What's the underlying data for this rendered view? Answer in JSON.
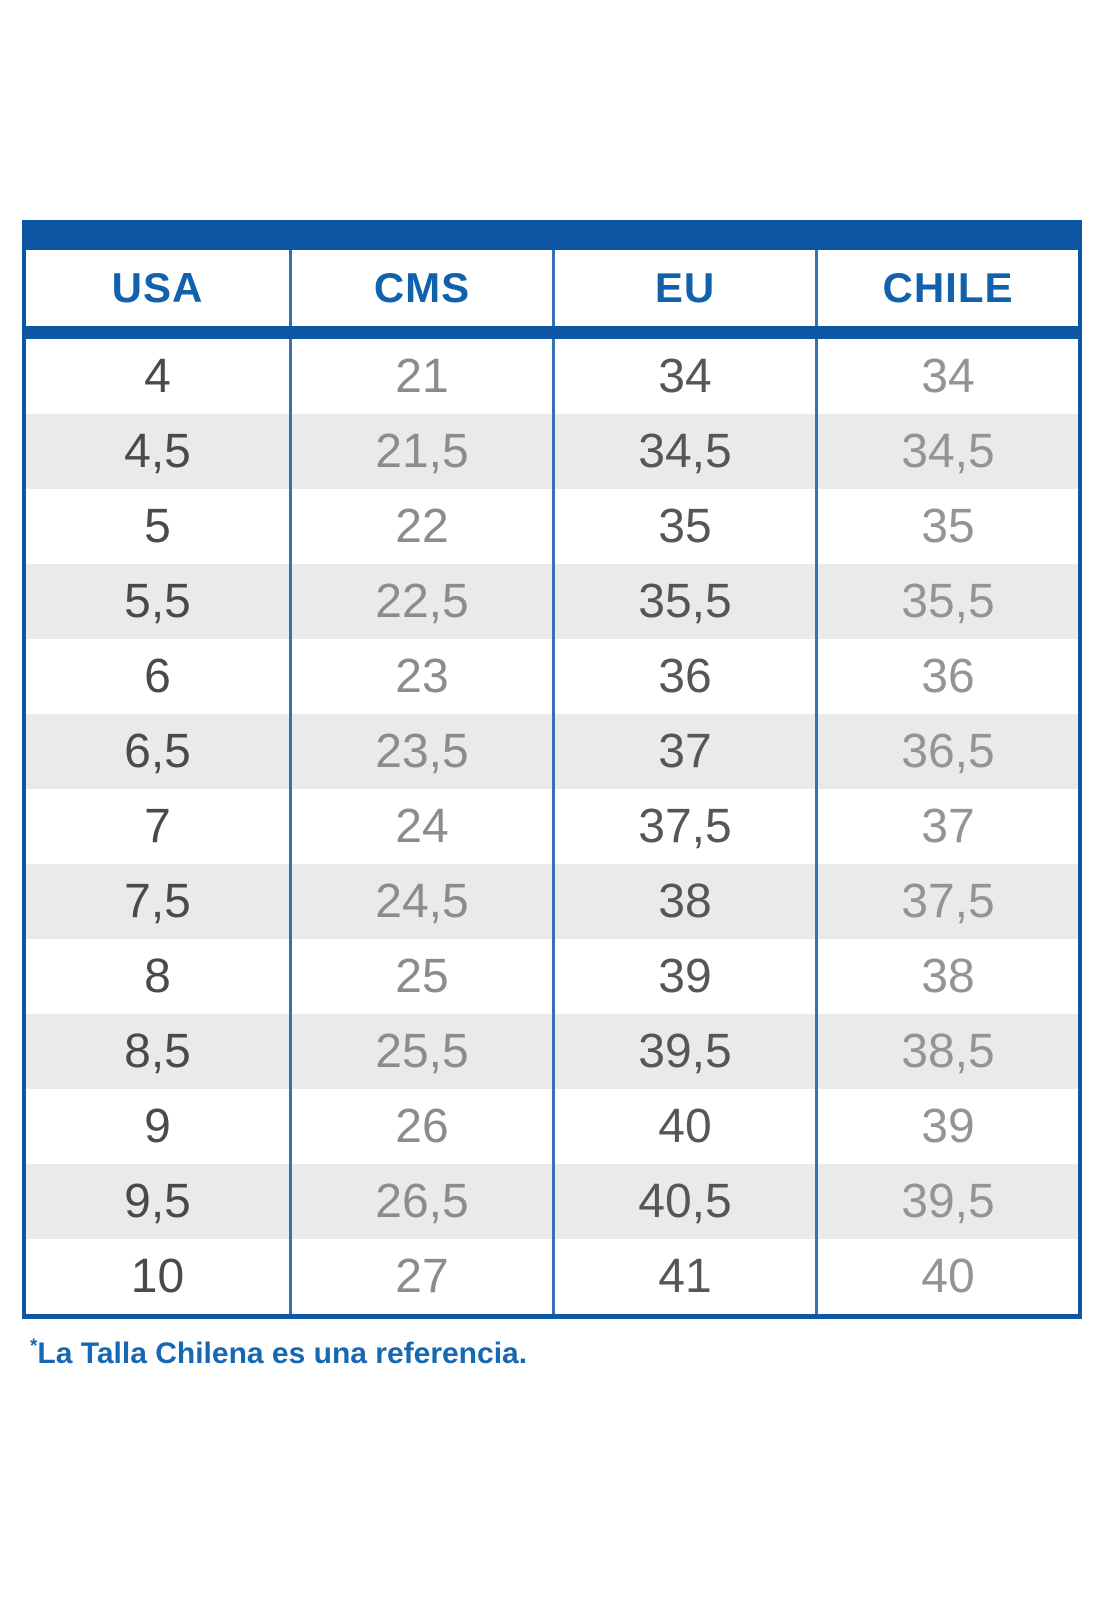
{
  "chart_data": {
    "type": "table",
    "columns": [
      "USA",
      "CMS",
      "EU",
      "CHILE"
    ],
    "rows": [
      [
        "4",
        "21",
        "34",
        "34"
      ],
      [
        "4,5",
        "21,5",
        "34,5",
        "34,5"
      ],
      [
        "5",
        "22",
        "35",
        "35"
      ],
      [
        "5,5",
        "22,5",
        "35,5",
        "35,5"
      ],
      [
        "6",
        "23",
        "36",
        "36"
      ],
      [
        "6,5",
        "23,5",
        "37",
        "36,5"
      ],
      [
        "7",
        "24",
        "37,5",
        "37"
      ],
      [
        "7,5",
        "24,5",
        "38",
        "37,5"
      ],
      [
        "8",
        "25",
        "39",
        "38"
      ],
      [
        "8,5",
        "25,5",
        "39,5",
        "38,5"
      ],
      [
        "9",
        "26",
        "40",
        "39"
      ],
      [
        "9,5",
        "26,5",
        "40,5",
        "39,5"
      ],
      [
        "10",
        "27",
        "41",
        "40"
      ]
    ],
    "layout_hints": {
      "stripe_pattern": "even rows white, odd rows gray",
      "legend": "none",
      "grid": "vertical blue dividers only"
    }
  },
  "footnote": {
    "asterisk": "*",
    "text": "La Talla Chilena es una referencia."
  },
  "colors": {
    "primary_blue": "#0d57a4",
    "divider_blue": "#3672b1",
    "header_text": "#1261ad",
    "footnote_text": "#1668b3",
    "stripe_gray": "#eaeaea",
    "col_text": [
      "#4a4a4a",
      "#8c8c8c",
      "#565656",
      "#949494"
    ]
  }
}
